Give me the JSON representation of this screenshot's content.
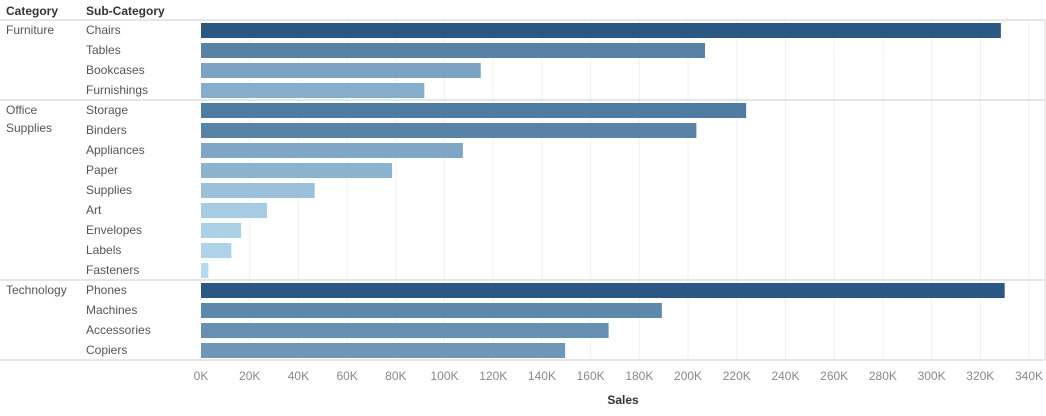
{
  "headers": {
    "category": "Category",
    "subcategory": "Sub-Category"
  },
  "chart_data": {
    "type": "bar",
    "orientation": "horizontal",
    "xlabel": "Sales",
    "xlim": [
      0,
      340000
    ],
    "ticks": [
      "0K",
      "20K",
      "40K",
      "60K",
      "80K",
      "100K",
      "120K",
      "140K",
      "160K",
      "180K",
      "200K",
      "220K",
      "240K",
      "260K",
      "280K",
      "300K",
      "320K",
      "340K"
    ],
    "grid": true,
    "color_scale": {
      "low": "#b9ddf1",
      "high": "#2a5783"
    },
    "groups": [
      {
        "category": "Furniture",
        "items": [
          {
            "name": "Chairs",
            "value": 328449
          },
          {
            "name": "Tables",
            "value": 206966
          },
          {
            "name": "Bookcases",
            "value": 114880
          },
          {
            "name": "Furnishings",
            "value": 91705
          }
        ]
      },
      {
        "category": "Office Supplies",
        "items": [
          {
            "name": "Storage",
            "value": 223844
          },
          {
            "name": "Binders",
            "value": 203413
          },
          {
            "name": "Appliances",
            "value": 107532
          },
          {
            "name": "Paper",
            "value": 78479
          },
          {
            "name": "Supplies",
            "value": 46674
          },
          {
            "name": "Art",
            "value": 27119
          },
          {
            "name": "Envelopes",
            "value": 16476
          },
          {
            "name": "Labels",
            "value": 12486
          },
          {
            "name": "Fasteners",
            "value": 3024
          }
        ]
      },
      {
        "category": "Technology",
        "items": [
          {
            "name": "Phones",
            "value": 330007
          },
          {
            "name": "Machines",
            "value": 189239
          },
          {
            "name": "Accessories",
            "value": 167380
          },
          {
            "name": "Copiers",
            "value": 149528
          }
        ]
      }
    ]
  }
}
